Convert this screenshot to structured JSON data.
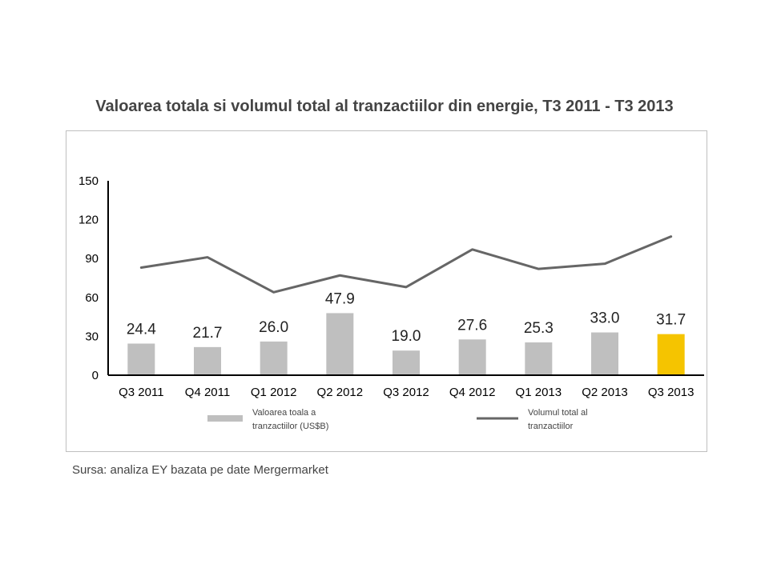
{
  "title": "Valoarea totala si volumul total al tranzactiilor din energie, T3 2011 - T3 2013",
  "source": "Sursa: analiza EY bazata pe date Mergermarket",
  "colors": {
    "bar": "#bfbfbf",
    "bar_highlight": "#f5c400",
    "line": "#666666",
    "axis": "#000000"
  },
  "chart_data": {
    "type": "bar",
    "categories": [
      "Q3 2011",
      "Q4 2011",
      "Q1 2012",
      "Q2 2012",
      "Q3 2012",
      "Q4 2012",
      "Q1 2013",
      "Q2 2013",
      "Q3 2013"
    ],
    "ylim": [
      0,
      150
    ],
    "yticks": [
      0,
      30,
      60,
      90,
      120,
      150
    ],
    "grid": false,
    "legend_position": "bottom",
    "series": [
      {
        "name": "Valoarea toala a tranzactiilor (US$B)",
        "type": "bar",
        "values": [
          24.4,
          21.7,
          26.0,
          47.9,
          19.0,
          27.6,
          25.3,
          33.0,
          31.7
        ],
        "data_labels": [
          "24.4",
          "21.7",
          "26.0",
          "47.9",
          "19.0",
          "27.6",
          "25.3",
          "33.0",
          "31.7"
        ],
        "highlight_index": 8
      },
      {
        "name": "Volumul total al tranzactiilor",
        "type": "line",
        "values": [
          83,
          91,
          64,
          77,
          68,
          97,
          82,
          86,
          107
        ]
      }
    ],
    "legend": [
      {
        "line1": "Valoarea toala a",
        "line2": "tranzactiilor (US$B)"
      },
      {
        "line1": "Volumul total al",
        "line2": "tranzactiilor"
      }
    ]
  }
}
